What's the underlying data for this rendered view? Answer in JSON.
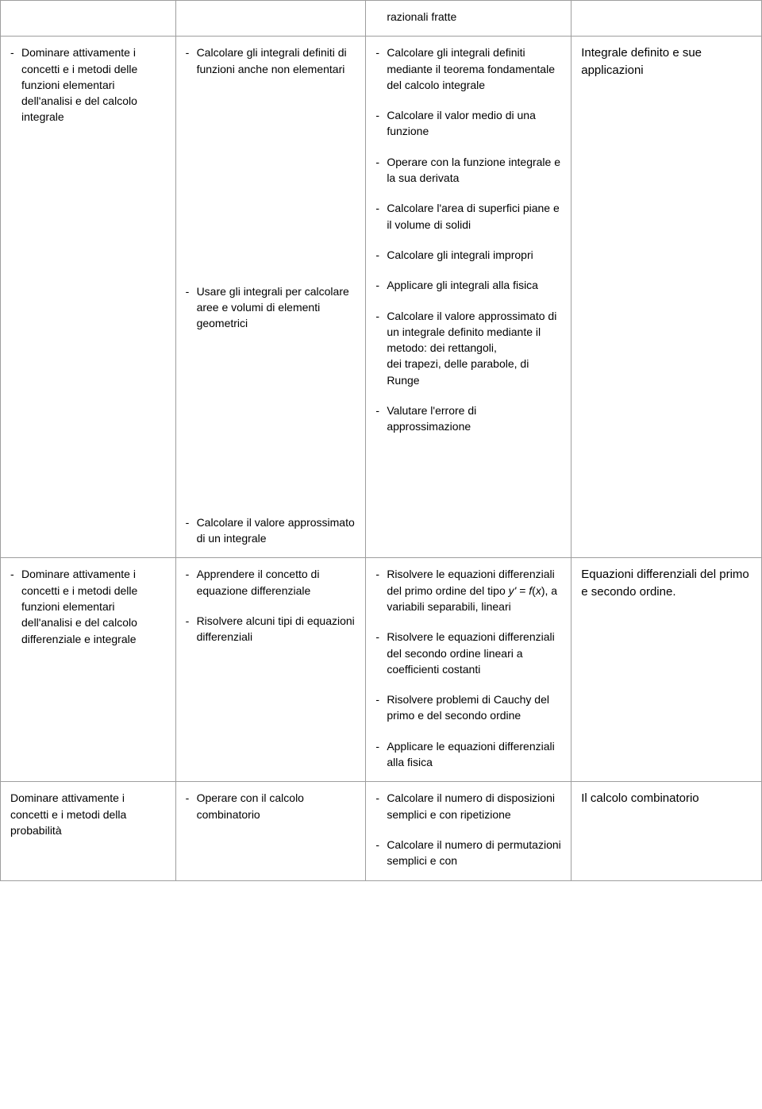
{
  "table": {
    "columns_count": 4,
    "font_family": "Arial",
    "font_size_body": 14,
    "font_size_topic": 15,
    "border_color": "#9e9e9e",
    "background_color": "#ffffff",
    "text_color": "#000000",
    "rows": [
      {
        "col1": [],
        "col2": [],
        "col3": [
          "razionali fratte"
        ],
        "col4_topic": ""
      },
      {
        "col1": [
          "Dominare attivamente i concetti e i metodi delle funzioni elementari dell'analisi e del calcolo integrale"
        ],
        "col2": [
          "Calcolare gli integrali definiti di funzioni anche non elementari",
          "Usare gli integrali per calcolare aree e volumi di elementi geometrici",
          "Calcolare il valore approssimato di un integrale"
        ],
        "col3": [
          "Calcolare gli integrali definiti mediante il teorema fondamentale del calcolo integrale",
          "Calcolare il valor medio di una funzione",
          "Operare con la funzione integrale e la sua derivata",
          "Calcolare l'area di superfici piane e il volume di solidi",
          "Calcolare gli integrali impropri",
          "Applicare gli integrali alla fisica",
          "Calcolare il valore approssimato di un integrale definito mediante il metodo: dei rettangoli,\ndei trapezi, delle parabole, di Runge",
          "Valutare l'errore di approssimazione"
        ],
        "col4_topic": "Integrale definito e sue applicazioni"
      },
      {
        "col1": [
          "Dominare attivamente i concetti e i metodi delle funzioni elementari dell'analisi e del calcolo differenziale e integrale"
        ],
        "col2": [
          "Apprendere il concetto di equazione differenziale",
          "Risolvere alcuni tipi di equazioni differenziali"
        ],
        "col3_html": [
          "Risolvere le equazioni differenziali del primo ordine del tipo <span class=\"italic\">y'</span> = <span class=\"italic\">f</span>(<span class=\"italic\">x</span>), a variabili separabili, lineari",
          "Risolvere le equazioni differenziali del secondo ordine lineari a coefficienti costanti",
          "Risolvere problemi di Cauchy del primo e del secondo ordine",
          "Applicare le equazioni differenziali alla fisica"
        ],
        "col4_topic": "Equazioni differenziali del primo e secondo ordine."
      },
      {
        "col1_plain": [
          "Dominare attivamente i concetti e i metodi della probabilità"
        ],
        "col2": [
          "Operare con il calcolo combinatorio"
        ],
        "col3": [
          "Calcolare il numero di disposizioni semplici e con ripetizione",
          "Calcolare il numero di permutazioni semplici e con"
        ],
        "col4_topic": "Il calcolo combinatorio"
      }
    ]
  }
}
